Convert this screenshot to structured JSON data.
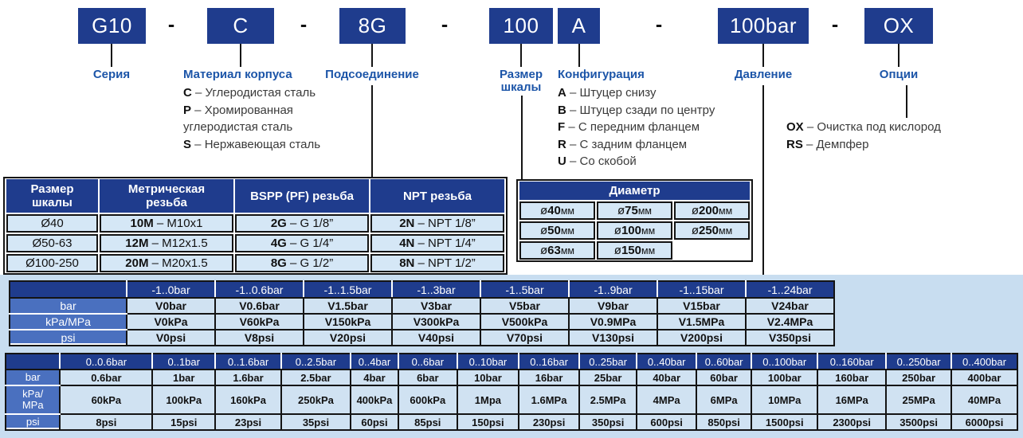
{
  "code": {
    "separator": "-",
    "dash": "–",
    "boxes": [
      {
        "code": "G10",
        "label": "Серия"
      },
      {
        "code": "C",
        "label": "Материал корпуса"
      },
      {
        "code": "8G",
        "label": "Подсоединение"
      },
      {
        "code": "100",
        "label": "Размер шкалы"
      },
      {
        "code": "A",
        "label": "Конфигурация"
      },
      {
        "code": "100bar",
        "label": "Давление"
      },
      {
        "code": "OX",
        "label": "Опции"
      }
    ]
  },
  "material_options": [
    {
      "code": "C",
      "text": "Углеродистая сталь"
    },
    {
      "code": "P",
      "text": "Хромированная углеродистая сталь"
    },
    {
      "code": "S",
      "text": "Нержавеющая сталь"
    }
  ],
  "configuration_options": [
    {
      "code": "A",
      "text": "Штуцер снизу"
    },
    {
      "code": "B",
      "text": "Штуцер сзади по центру"
    },
    {
      "code": "F",
      "text": "С передним фланцем"
    },
    {
      "code": "R",
      "text": "С задним фланцем"
    },
    {
      "code": "U",
      "text": "Со скобой"
    }
  ],
  "extra_options": [
    {
      "code": "OX",
      "text": "Очистка под кислород"
    },
    {
      "code": "RS",
      "text": "Демпфер"
    }
  ],
  "thread_table": {
    "headers": [
      "Размер шкалы",
      "Метрическая резьба",
      "BSPP (PF) резьба",
      "NPT резьба"
    ],
    "rows": [
      {
        "size": "Ø40",
        "metric": {
          "code": "10M",
          "value": "M10x1"
        },
        "bspp": {
          "code": "2G",
          "value": "G 1/8”"
        },
        "npt": {
          "code": "2N",
          "value": "NPT 1/8”"
        }
      },
      {
        "size": "Ø50-63",
        "metric": {
          "code": "12M",
          "value": "M12x1.5"
        },
        "bspp": {
          "code": "4G",
          "value": "G 1/4”"
        },
        "npt": {
          "code": "4N",
          "value": "NPT 1/4”"
        }
      },
      {
        "size": "Ø100-250",
        "metric": {
          "code": "20M",
          "value": "M20x1.5"
        },
        "bspp": {
          "code": "8G",
          "value": "G 1/2”"
        },
        "npt": {
          "code": "8N",
          "value": "NPT 1/2”"
        }
      }
    ]
  },
  "diameter_table": {
    "title": "Диаметр",
    "symbol": "ø",
    "unit": "мм",
    "rows": [
      [
        "40",
        "75",
        "200"
      ],
      [
        "50",
        "100",
        "250"
      ],
      [
        "63",
        "150",
        ""
      ]
    ]
  },
  "vacuum_table": {
    "ranges": [
      "-1..0bar",
      "-1..0.6bar",
      "-1..1.5bar",
      "-1..3bar",
      "-1..5bar",
      "-1..9bar",
      "-1..15bar",
      "-1..24bar"
    ],
    "rows": [
      {
        "unit": "bar",
        "unit_lines": [
          "bar"
        ],
        "cells": [
          "V0bar",
          "V0.6bar",
          "V1.5bar",
          "V3bar",
          "V5bar",
          "V9bar",
          "V15bar",
          "V24bar"
        ]
      },
      {
        "unit": "kPa/MPa",
        "unit_lines": [
          "kPa/MPa"
        ],
        "cells": [
          "V0kPa",
          "V60kPa",
          "V150kPa",
          "V300kPa",
          "V500kPa",
          "V0.9MPa",
          "V1.5MPa",
          "V2.4MPa"
        ]
      },
      {
        "unit": "psi",
        "unit_lines": [
          "psi"
        ],
        "cells": [
          "V0psi",
          "V8psi",
          "V20psi",
          "V40psi",
          "V70psi",
          "V130psi",
          "V200psi",
          "V350psi"
        ]
      }
    ]
  },
  "pressure_table": {
    "ranges": [
      "0..0.6bar",
      "0..1bar",
      "0..1.6bar",
      "0..2.5bar",
      "0..4bar",
      "0..6bar",
      "0..10bar",
      "0..16bar",
      "0..25bar",
      "0..40bar",
      "0..60bar",
      "0..100bar",
      "0..160bar",
      "0..250bar",
      "0..400bar"
    ],
    "rows": [
      {
        "unit": "bar",
        "unit_lines": [
          "bar"
        ],
        "cells": [
          "0.6bar",
          "1bar",
          "1.6bar",
          "2.5bar",
          "4bar",
          "6bar",
          "10bar",
          "16bar",
          "25bar",
          "40bar",
          "60bar",
          "100bar",
          "160bar",
          "250bar",
          "400bar"
        ]
      },
      {
        "unit": "kPa/MPa",
        "unit_lines": [
          "kPa/",
          "MPa"
        ],
        "cells": [
          "60kPa",
          "100kPa",
          "160kPa",
          "250kPa",
          "400kPa",
          "600kPa",
          "1Mpa",
          "1.6MPa",
          "2.5MPa",
          "4MPa",
          "6MPa",
          "10MPa",
          "16MPa",
          "25MPa",
          "40MPa"
        ]
      },
      {
        "unit": "psi",
        "unit_lines": [
          "psi"
        ],
        "cells": [
          "8psi",
          "15psi",
          "23psi",
          "35psi",
          "60psi",
          "85psi",
          "150psi",
          "230psi",
          "350psi",
          "600psi",
          "850psi",
          "1500psi",
          "2300psi",
          "3500psi",
          "6000psi"
        ]
      }
    ]
  },
  "colors": {
    "dark_blue": "#1f3c8d",
    "medium_blue": "#4a70bf",
    "light_cell": "#d5e7f6",
    "band": "#c8ddf0",
    "label_text": "#1c55a8"
  }
}
